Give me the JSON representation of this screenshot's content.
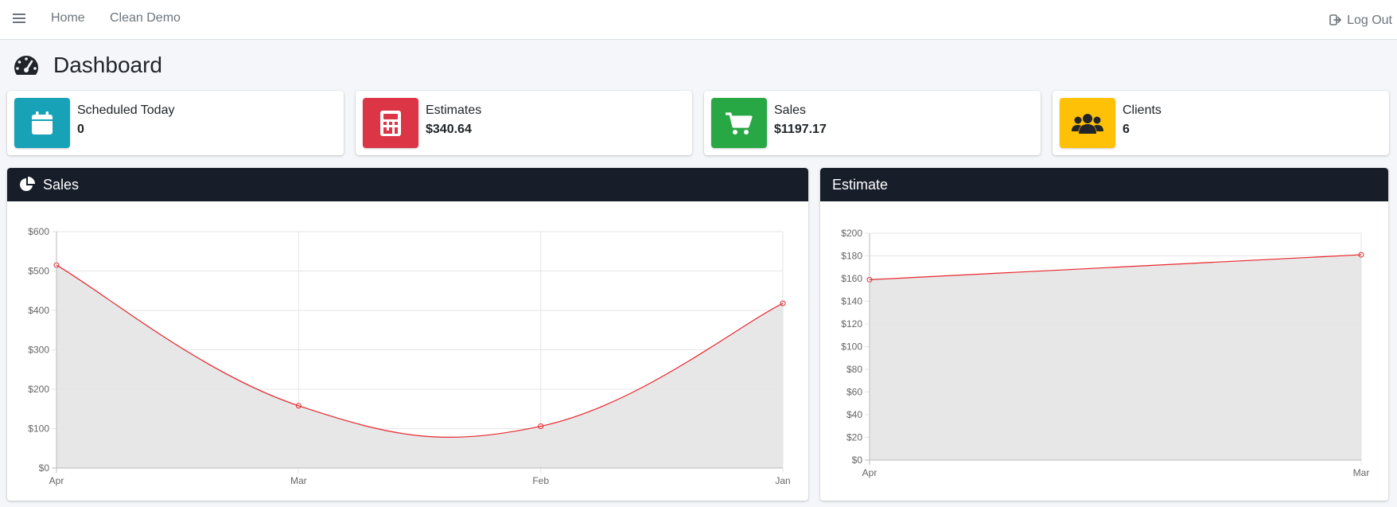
{
  "nav": {
    "links": [
      "Home",
      "Clean Demo"
    ],
    "logout_label": "Log Out"
  },
  "page": {
    "title": "Dashboard"
  },
  "info_boxes": [
    {
      "label": "Scheduled Today",
      "value": "0",
      "icon": "calendar-icon",
      "color": "#17a2b8"
    },
    {
      "label": "Estimates",
      "value": "$340.64",
      "icon": "calculator-icon",
      "color": "#dc3545"
    },
    {
      "label": "Sales",
      "value": "$1197.17",
      "icon": "shopping-cart-icon",
      "color": "#28a745"
    },
    {
      "label": "Clients",
      "value": "6",
      "icon": "users-icon",
      "color": "#ffc107"
    }
  ],
  "cards": {
    "sales": {
      "title": "Sales",
      "icon": "chart-pie-icon"
    },
    "estimate": {
      "title": "Estimate"
    }
  },
  "colors": {
    "header_dark": "#171d29",
    "line": "#e8262c",
    "fill": "#e6e6e6"
  },
  "chart_data": [
    {
      "type": "area",
      "categories": [
        "Apr",
        "Mar",
        "Feb",
        "Jan"
      ],
      "series": [
        {
          "values": [
            515,
            158,
            106,
            418
          ]
        }
      ],
      "ylim": [
        0,
        600
      ],
      "yticks": [
        0,
        100,
        200,
        300,
        400,
        500,
        600
      ],
      "ytick_labels": [
        "$0",
        "$100",
        "$200",
        "$300",
        "$400",
        "$500",
        "$600"
      ],
      "grid": true
    },
    {
      "type": "area",
      "categories": [
        "Apr",
        "Mar"
      ],
      "series": [
        {
          "values": [
            159,
            181
          ]
        }
      ],
      "ylim": [
        0,
        200
      ],
      "yticks": [
        0,
        20,
        40,
        60,
        80,
        100,
        120,
        140,
        160,
        180,
        200
      ],
      "ytick_labels": [
        "$0",
        "$20",
        "$40",
        "$60",
        "$80",
        "$100",
        "$120",
        "$140",
        "$160",
        "$180",
        "$200"
      ],
      "grid": true
    }
  ]
}
